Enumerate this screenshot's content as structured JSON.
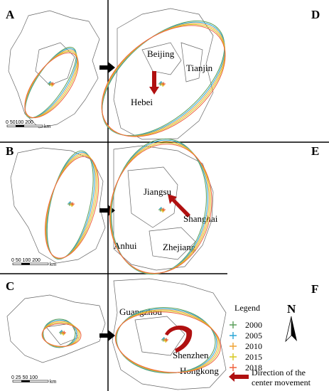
{
  "panels": [
    "A",
    "B",
    "C",
    "D",
    "E",
    "F"
  ],
  "places": {
    "D": [
      "Beijing",
      "Tianjin",
      "Hebei"
    ],
    "E": [
      "Jiangsu",
      "Shanghai",
      "Anhui",
      "Zhejiang"
    ],
    "F": [
      "Guangzhou",
      "Shenzhen",
      "Hongkong"
    ]
  },
  "scale_bars": [
    {
      "labels": "0 50100 200",
      "unit": "km"
    },
    {
      "labels": "0 50 100 200",
      "unit": "km"
    },
    {
      "labels": "0 25 50 100",
      "unit": "km"
    }
  ],
  "legend": {
    "title": "Legend",
    "entries": [
      {
        "year": "2000",
        "color": "#5a9e5a"
      },
      {
        "year": "2005",
        "color": "#2aa6d6"
      },
      {
        "year": "2010",
        "color": "#f0a232"
      },
      {
        "year": "2015",
        "color": "#d6c81e"
      },
      {
        "year": "2018",
        "color": "#f0603c"
      }
    ]
  },
  "north": "N",
  "direction_label": [
    "Direction of the",
    "center movement"
  ]
}
